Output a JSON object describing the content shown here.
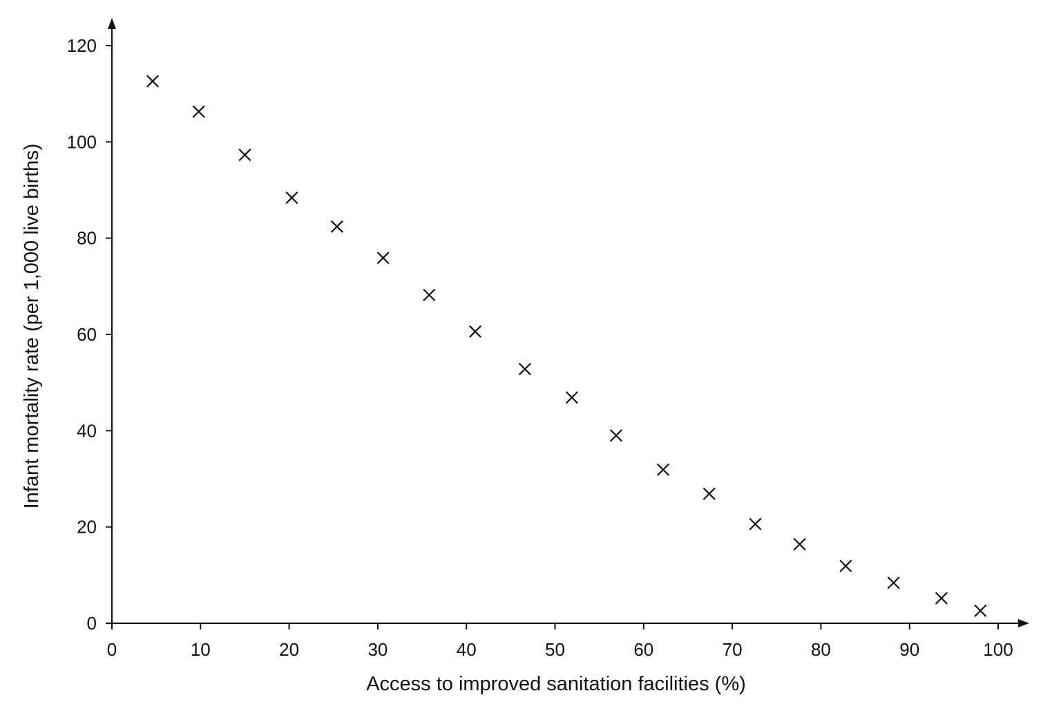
{
  "chart_data": {
    "type": "scatter",
    "title": "",
    "xlabel": "Access to improved sanitation facilities (%)",
    "ylabel": "Infant mortality rate (per 1,000 live births)",
    "xlim": [
      0,
      100
    ],
    "ylim": [
      0,
      120
    ],
    "x_ticks": [
      0,
      10,
      20,
      30,
      40,
      50,
      60,
      70,
      80,
      90,
      100
    ],
    "y_ticks": [
      0,
      20,
      40,
      60,
      80,
      100,
      120
    ],
    "x_tick_labels": [
      "0",
      "10",
      "20",
      "30",
      "40",
      "50",
      "60",
      "70",
      "80",
      "90",
      "100"
    ],
    "y_tick_labels": [
      "0",
      "20",
      "40",
      "60",
      "80",
      "100",
      "120"
    ],
    "grid": false,
    "legend": "none",
    "marker": "x",
    "marker_color": "#111111",
    "points": [
      {
        "x": 4.6,
        "y": 112.6
      },
      {
        "x": 9.8,
        "y": 106.3
      },
      {
        "x": 15.0,
        "y": 97.3
      },
      {
        "x": 20.3,
        "y": 88.4
      },
      {
        "x": 25.4,
        "y": 82.4
      },
      {
        "x": 30.6,
        "y": 75.9
      },
      {
        "x": 35.8,
        "y": 68.2
      },
      {
        "x": 41.0,
        "y": 60.6
      },
      {
        "x": 46.6,
        "y": 52.8
      },
      {
        "x": 51.9,
        "y": 46.9
      },
      {
        "x": 56.9,
        "y": 39.0
      },
      {
        "x": 62.2,
        "y": 31.9
      },
      {
        "x": 67.4,
        "y": 26.9
      },
      {
        "x": 72.6,
        "y": 20.6
      },
      {
        "x": 77.6,
        "y": 16.4
      },
      {
        "x": 82.8,
        "y": 11.9
      },
      {
        "x": 88.2,
        "y": 8.4
      },
      {
        "x": 93.6,
        "y": 5.2
      },
      {
        "x": 98.0,
        "y": 2.6
      }
    ]
  }
}
